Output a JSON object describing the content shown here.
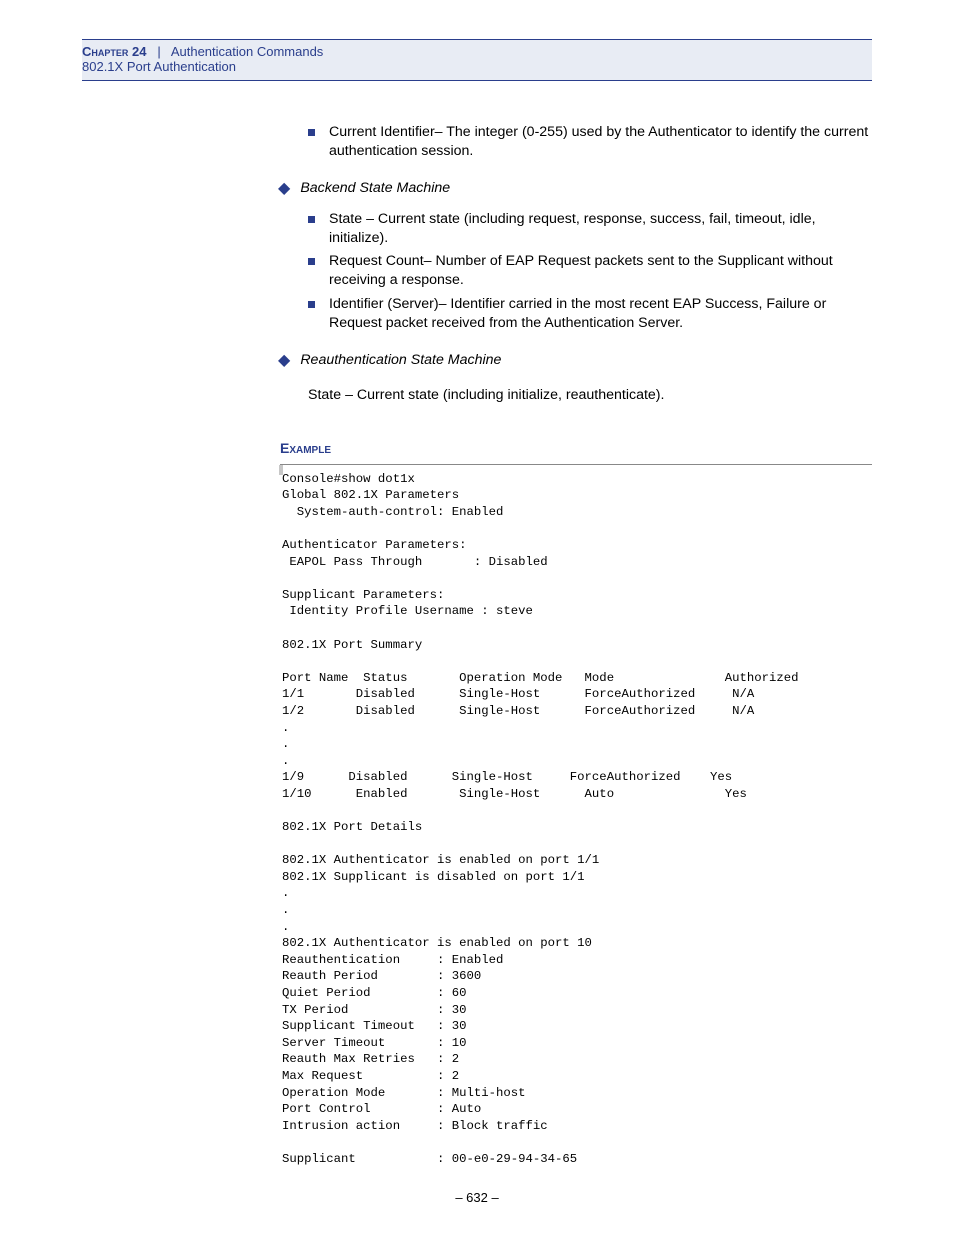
{
  "header": {
    "chapter_label": "Chapter 24",
    "separator": "|",
    "chapter_title": "Authentication Commands",
    "subtitle": "802.1X Port Authentication"
  },
  "intro_list": [
    "Current Identifier– The integer (0-255) used by the Authenticator to identify the current authentication session."
  ],
  "sections": [
    {
      "title": "Backend State Machine",
      "items": [
        "State – Current state (including request, response, success, fail, timeout, idle, initialize).",
        "Request Count– Number of EAP Request packets sent to the Supplicant without receiving a response.",
        "Identifier (Server)– Identifier carried in the most recent EAP Success, Failure or Request packet received from the Authentication Server."
      ]
    },
    {
      "title": "Reauthentication State Machine",
      "plain": "State – Current state (including initialize, reauthenticate)."
    }
  ],
  "example": {
    "label": "Example",
    "code": "Console#show dot1x\nGlobal 802.1X Parameters\n  System-auth-control: Enabled\n\nAuthenticator Parameters:\n EAPOL Pass Through       : Disabled\n\nSupplicant Parameters:\n Identity Profile Username : steve\n\n802.1X Port Summary\n\nPort Name  Status       Operation Mode   Mode               Authorized\n1/1       Disabled      Single-Host      ForceAuthorized     N/A\n1/2       Disabled      Single-Host      ForceAuthorized     N/A\n.\n.\n.\n1/9      Disabled      Single-Host     ForceAuthorized    Yes\n1/10      Enabled       Single-Host      Auto               Yes\n\n802.1X Port Details\n\n802.1X Authenticator is enabled on port 1/1\n802.1X Supplicant is disabled on port 1/1\n.\n.\n.\n802.1X Authenticator is enabled on port 10\nReauthentication     : Enabled\nReauth Period        : 3600\nQuiet Period         : 60\nTX Period            : 30\nSupplicant Timeout   : 30\nServer Timeout       : 10\nReauth Max Retries   : 2\nMax Request          : 2\nOperation Mode       : Multi-host\nPort Control         : Auto\nIntrusion action     : Block traffic\n\nSupplicant           : 00-e0-29-94-34-65"
  },
  "page_number": "– 632 –"
}
